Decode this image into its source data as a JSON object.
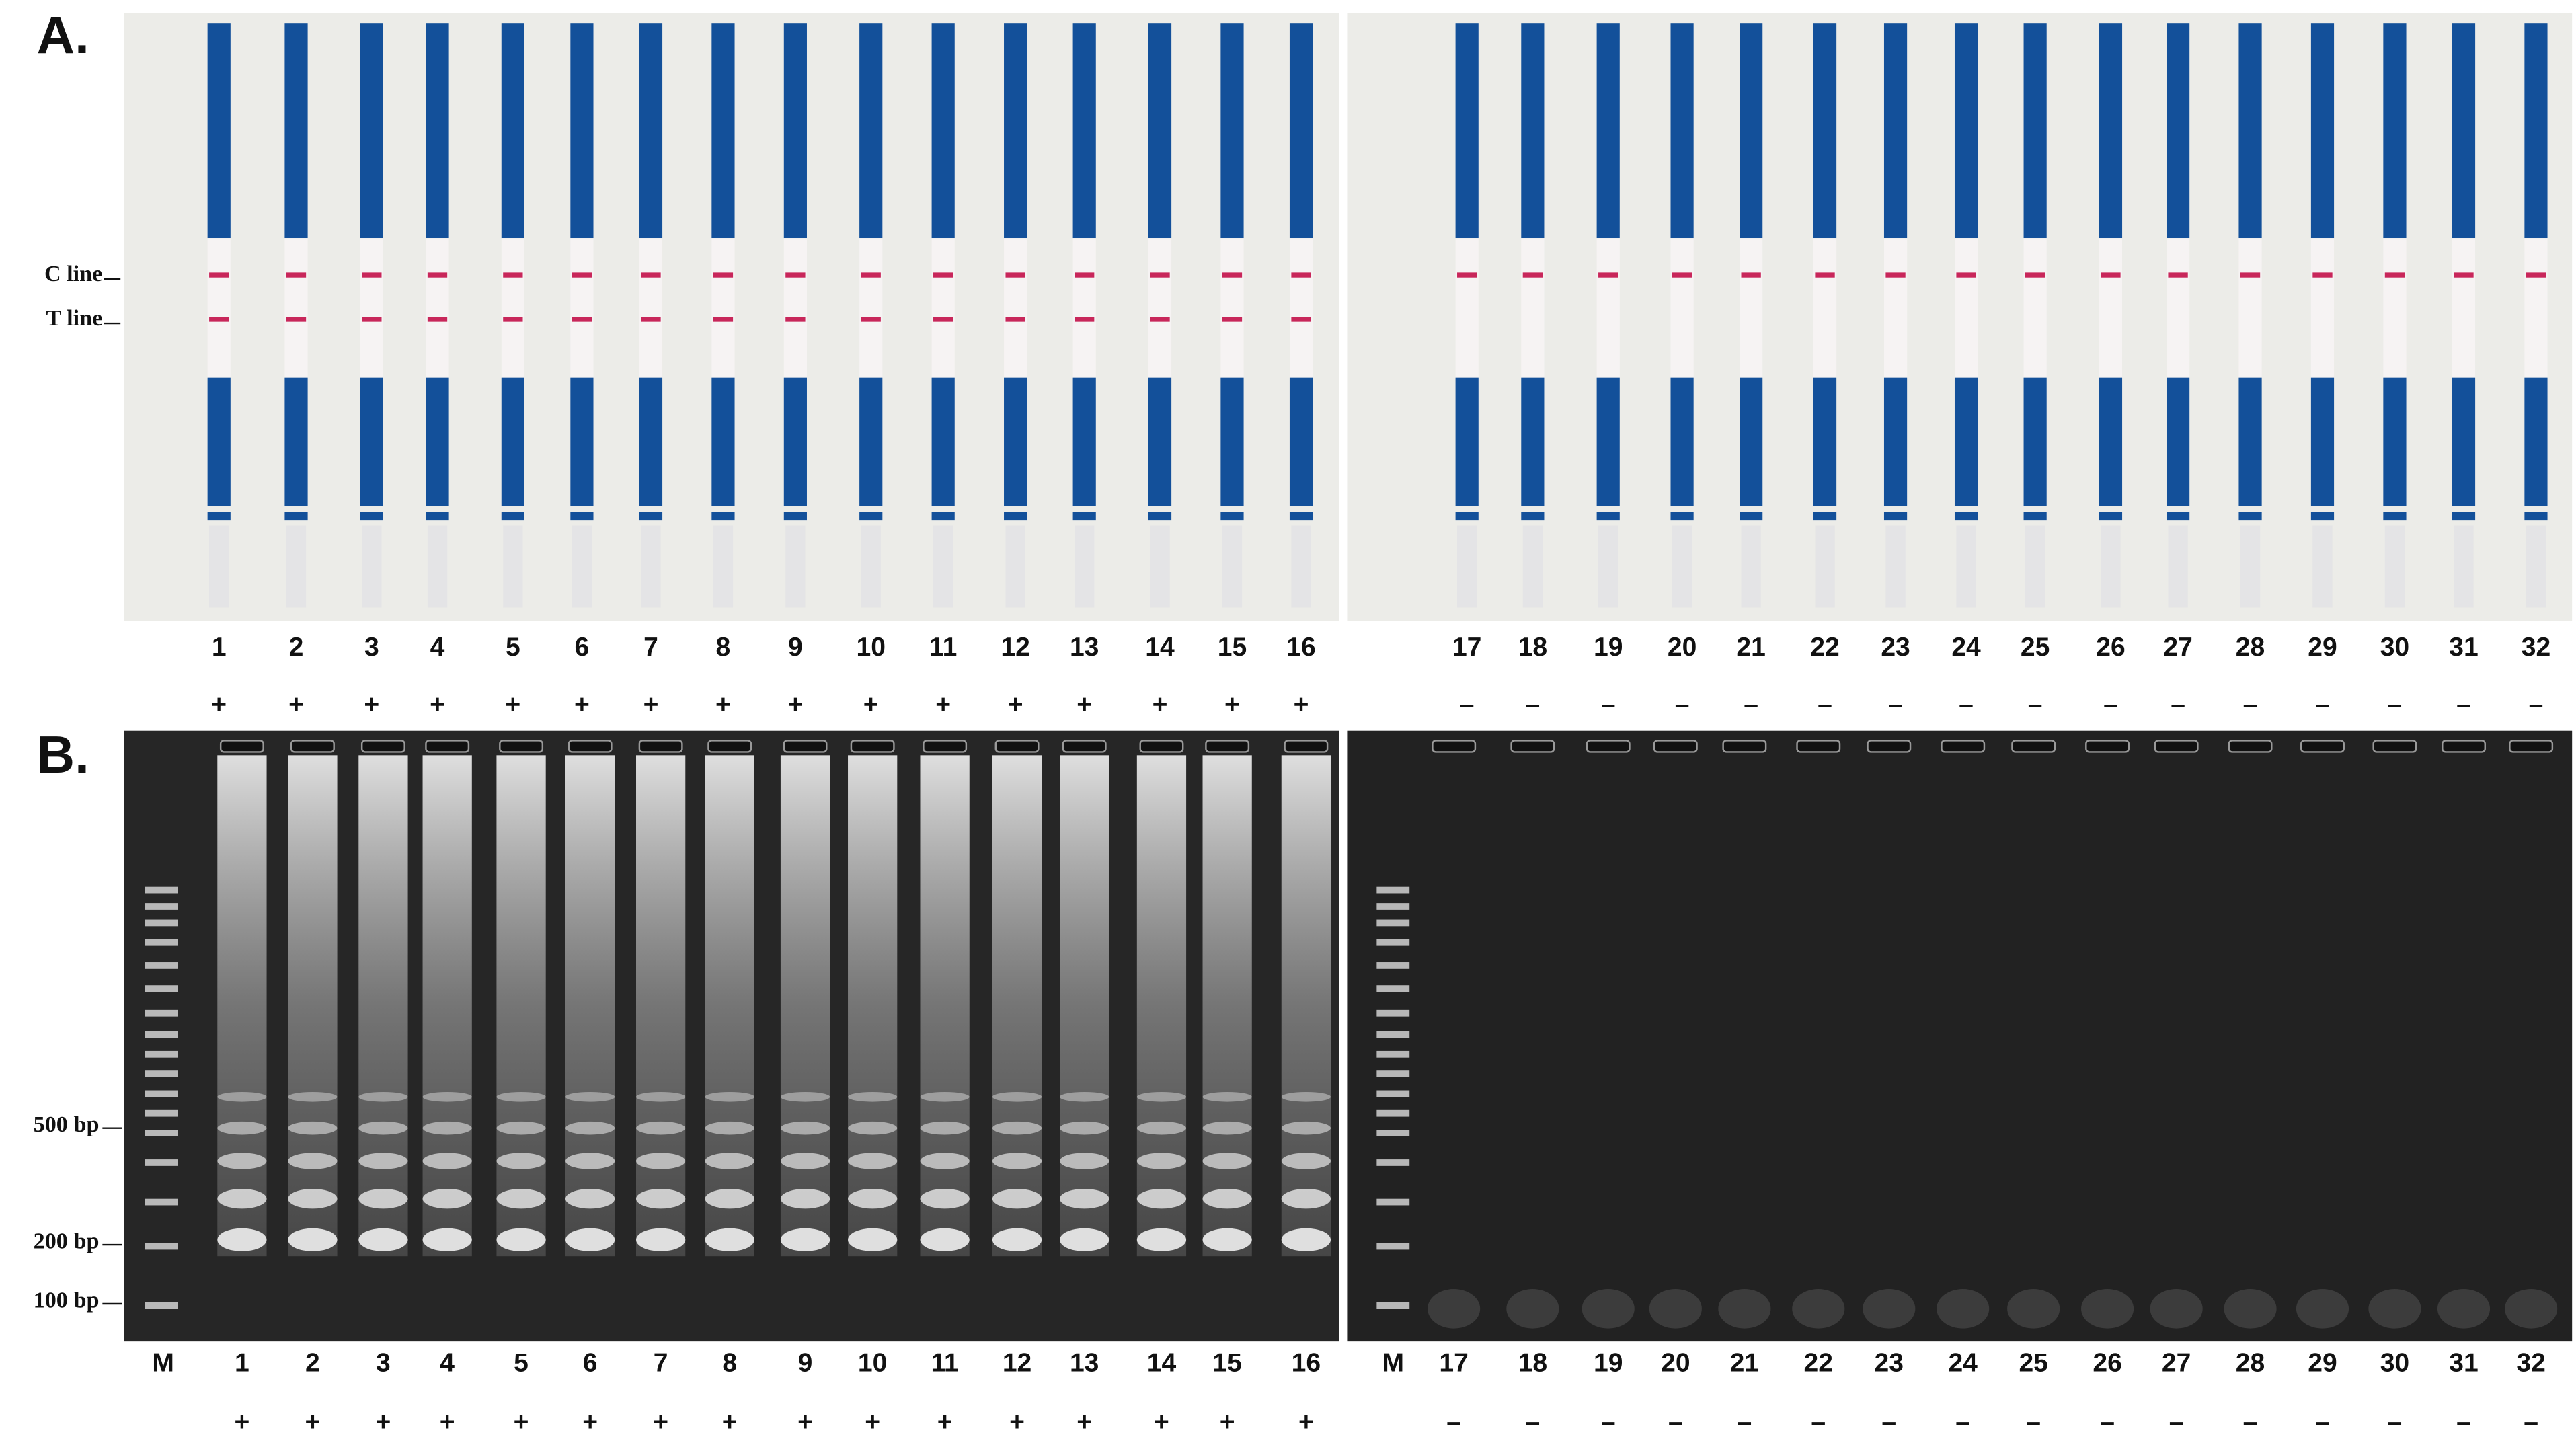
{
  "panel_a": {
    "label": "A.",
    "c_line": "C line",
    "t_line": "T line",
    "lanes": [
      "1",
      "2",
      "3",
      "4",
      "5",
      "6",
      "7",
      "8",
      "9",
      "10",
      "11",
      "12",
      "13",
      "14",
      "15",
      "16",
      "17",
      "18",
      "19",
      "20",
      "21",
      "22",
      "23",
      "24",
      "25",
      "26",
      "27",
      "28",
      "29",
      "30",
      "31",
      "32"
    ],
    "results": [
      "+",
      "+",
      "+",
      "+",
      "+",
      "+",
      "+",
      "+",
      "+",
      "+",
      "+",
      "+",
      "+",
      "+",
      "+",
      "+",
      "–",
      "–",
      "–",
      "–",
      "–",
      "–",
      "–",
      "–",
      "–",
      "–",
      "–",
      "–",
      "–",
      "–",
      "–",
      "–"
    ]
  },
  "panel_b": {
    "label": "B.",
    "markers": [
      "500 bp",
      "200 bp",
      "100 bp"
    ],
    "marker_lane": "M",
    "lanes": [
      "1",
      "2",
      "3",
      "4",
      "5",
      "6",
      "7",
      "8",
      "9",
      "10",
      "11",
      "12",
      "13",
      "14",
      "15",
      "16",
      "17",
      "18",
      "19",
      "20",
      "21",
      "22",
      "23",
      "24",
      "25",
      "26",
      "27",
      "28",
      "29",
      "30",
      "31",
      "32"
    ],
    "results": [
      "+",
      "+",
      "+",
      "+",
      "+",
      "+",
      "+",
      "+",
      "+",
      "+",
      "+",
      "+",
      "+",
      "+",
      "+",
      "+",
      "–",
      "–",
      "–",
      "–",
      "–",
      "–",
      "–",
      "–",
      "–",
      "–",
      "–",
      "–",
      "–",
      "–",
      "–",
      "–"
    ]
  }
}
